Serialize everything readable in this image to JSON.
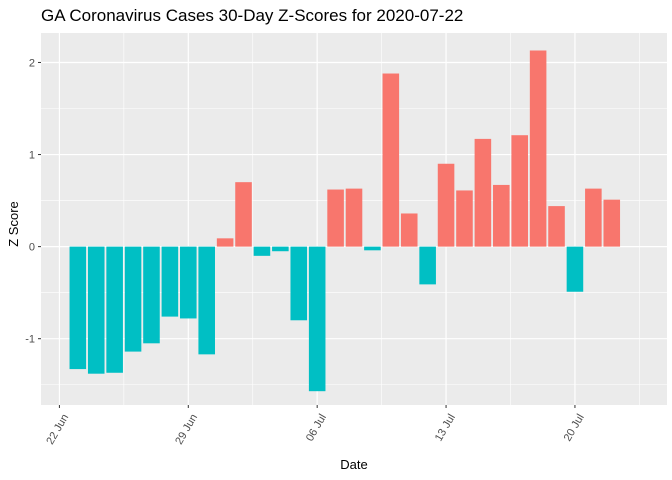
{
  "chart_data": {
    "type": "bar",
    "title": "GA Coronavirus Cases 30-Day Z-Scores for 2020-07-22",
    "xlabel": "Date",
    "ylabel": "Z Score",
    "x_tick_labels": [
      "22 Jun",
      "29 Jun",
      "06 Jul",
      "13 Jul",
      "20 Jul"
    ],
    "y_tick_labels": [
      "-1",
      "0",
      "1",
      "2"
    ],
    "ylim": [
      -1.72,
      2.32
    ],
    "xlim": [
      "2020-06-21",
      "2020-07-25"
    ],
    "grid": true,
    "legend": "none",
    "colors": {
      "positive": "#F8766D",
      "negative": "#00BFC4",
      "panel": "#EBEBEB",
      "grid": "#FFFFFF"
    },
    "x": [
      "2020-06-23",
      "2020-06-24",
      "2020-06-25",
      "2020-06-26",
      "2020-06-27",
      "2020-06-28",
      "2020-06-29",
      "2020-06-30",
      "2020-07-01",
      "2020-07-02",
      "2020-07-03",
      "2020-07-04",
      "2020-07-05",
      "2020-07-06",
      "2020-07-07",
      "2020-07-08",
      "2020-07-09",
      "2020-07-10",
      "2020-07-11",
      "2020-07-12",
      "2020-07-13",
      "2020-07-14",
      "2020-07-15",
      "2020-07-16",
      "2020-07-17",
      "2020-07-18",
      "2020-07-19",
      "2020-07-20",
      "2020-07-21",
      "2020-07-22"
    ],
    "values": [
      -1.33,
      -1.38,
      -1.37,
      -1.14,
      -1.05,
      -0.76,
      -0.78,
      -1.17,
      0.09,
      0.7,
      -0.1,
      -0.05,
      -0.8,
      -1.57,
      0.62,
      0.63,
      -0.04,
      1.88,
      0.36,
      -0.41,
      0.9,
      0.61,
      1.17,
      0.67,
      1.21,
      2.13,
      0.44,
      -0.49,
      0.63,
      0.51
    ]
  }
}
